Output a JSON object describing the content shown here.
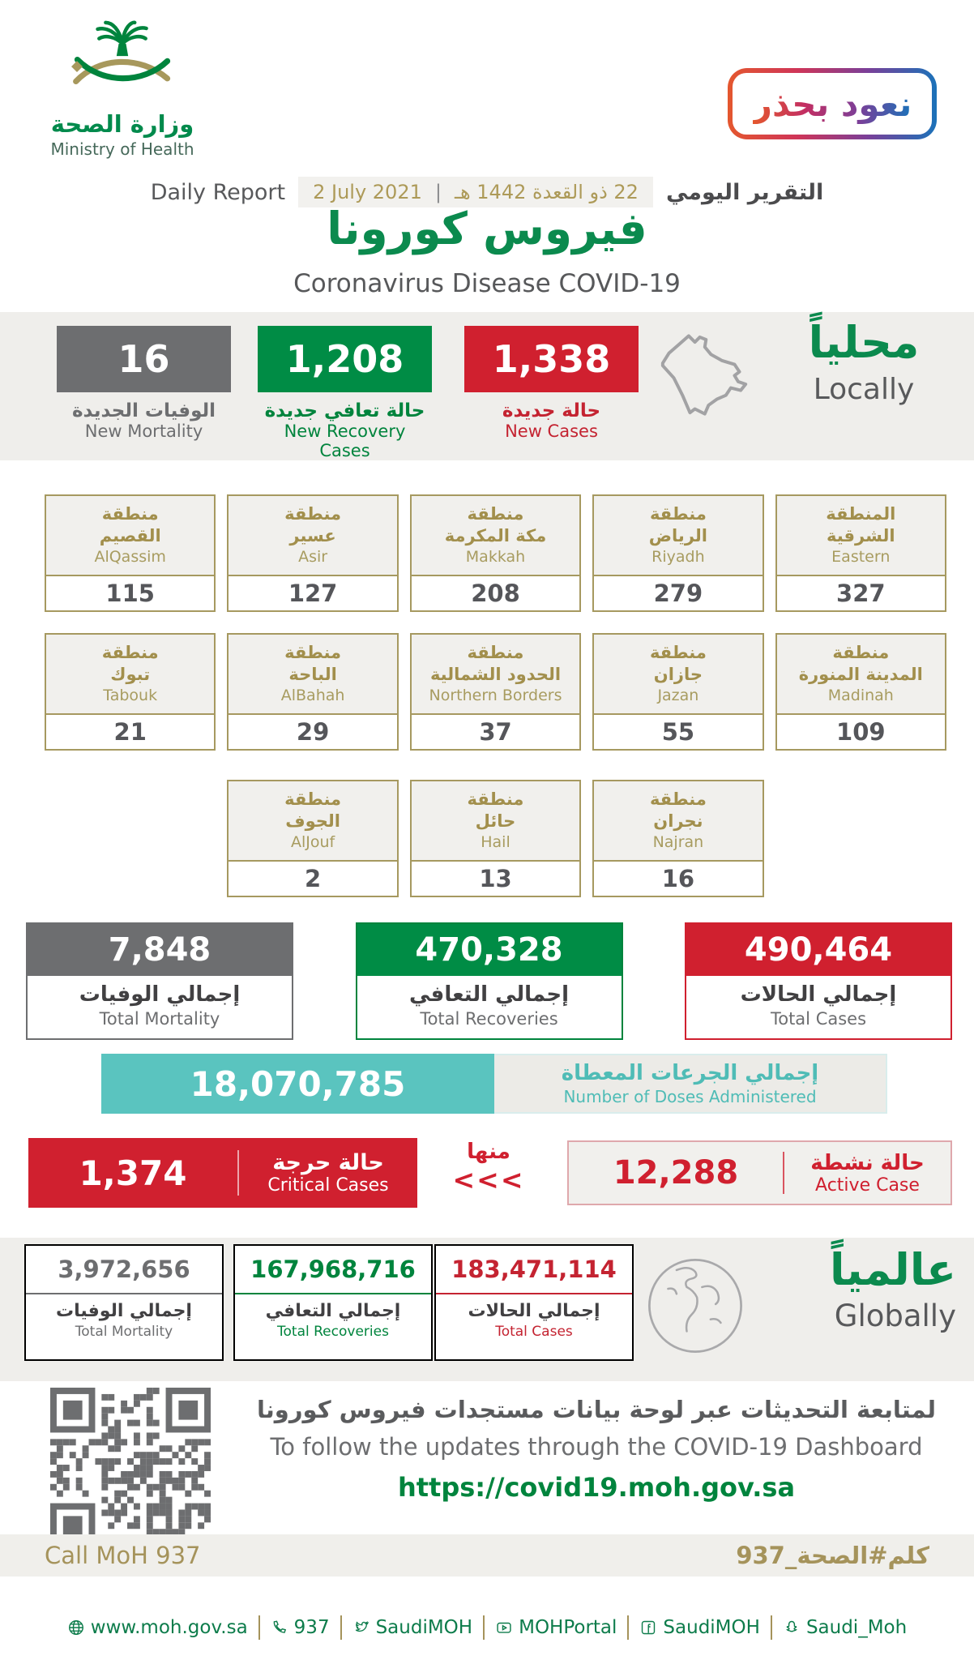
{
  "colors": {
    "green": "#00843d",
    "red": "#d0202f",
    "gray": "#6d6e70",
    "gold": "#a5935b",
    "teal": "#5ac4bf"
  },
  "header": {
    "logo_arabic": "وزارة الصحة",
    "logo_english": "Ministry of Health",
    "badge_text": "نعود بحذر",
    "report_label_en": "Daily Report",
    "date_gregorian": "2 July 2021",
    "date_separator": "|",
    "date_hijri": "22 ذو القعدة 1442 هـ",
    "report_label_ar": "التقرير اليومي",
    "title_ar": "فيروس كورونا",
    "title_en": "Coronavirus Disease COVID-19"
  },
  "locally": {
    "label_ar": "محلياً",
    "label_en": "Locally",
    "map_icon": "saudi-arabia-map-icon",
    "stats": [
      {
        "value": "16",
        "label_ar": "الوفيات الجديدة",
        "label_en": "New Mortality"
      },
      {
        "value": "1,208",
        "label_ar": "حالة تعافي جديدة",
        "label_en": "New Recovery Cases"
      },
      {
        "value": "1,338",
        "label_ar": "حالة جديدة",
        "label_en": "New Cases"
      }
    ]
  },
  "regions": {
    "row1": [
      {
        "ar1": "منطقة",
        "ar2": "القصيم",
        "en": "AlQassim",
        "value": "115"
      },
      {
        "ar1": "منطقة",
        "ar2": "عسير",
        "en": "Asir",
        "value": "127"
      },
      {
        "ar1": "منطقة",
        "ar2": "مكة المكرمة",
        "en": "Makkah",
        "value": "208"
      },
      {
        "ar1": "منطقة",
        "ar2": "الرياض",
        "en": "Riyadh",
        "value": "279"
      },
      {
        "ar1": "المنطقة",
        "ar2": "الشرقية",
        "en": "Eastern",
        "value": "327"
      }
    ],
    "row2": [
      {
        "ar1": "منطقة",
        "ar2": "تبوك",
        "en": "Tabouk",
        "value": "21"
      },
      {
        "ar1": "منطقة",
        "ar2": "الباحة",
        "en": "AlBahah",
        "value": "29"
      },
      {
        "ar1": "منطقة",
        "ar2": "الحدود الشمالية",
        "en": "Northern Borders",
        "value": "37"
      },
      {
        "ar1": "منطقة",
        "ar2": "جازان",
        "en": "Jazan",
        "value": "55"
      },
      {
        "ar1": "منطقة",
        "ar2": "المدينة المنورة",
        "en": "Madinah",
        "value": "109"
      }
    ],
    "row3": [
      {
        "ar1": "منطقة",
        "ar2": "الجوف",
        "en": "AlJouf",
        "value": "2"
      },
      {
        "ar1": "منطقة",
        "ar2": "حائل",
        "en": "Hail",
        "value": "13"
      },
      {
        "ar1": "منطقة",
        "ar2": "نجران",
        "en": "Najran",
        "value": "16"
      }
    ]
  },
  "totals": [
    {
      "value": "7,848",
      "label_ar": "إجمالي الوفيات",
      "label_en": "Total Mortality"
    },
    {
      "value": "470,328",
      "label_ar": "إجمالي التعافي",
      "label_en": "Total Recoveries"
    },
    {
      "value": "490,464",
      "label_ar": "إجمالي الحالات",
      "label_en": "Total Cases"
    }
  ],
  "doses": {
    "value": "18,070,785",
    "label_ar": "إجمالي الجرعات المعطاة",
    "label_en": "Number of Doses Administered"
  },
  "critical": {
    "value": "1,374",
    "label_ar": "حالة حرجة",
    "label_en": "Critical Cases",
    "of_which": "منها",
    "chevrons": "<<<"
  },
  "active": {
    "value": "12,288",
    "label_ar": "حالة نشطة",
    "label_en": "Active Case"
  },
  "globally": {
    "label_ar": "عالمياً",
    "label_en": "Globally",
    "globe_icon": "globe-icon",
    "stats": [
      {
        "value": "3,972,656",
        "label_ar": "إجمالي الوفيات",
        "label_en": "Total Mortality"
      },
      {
        "value": "167,968,716",
        "label_ar": "إجمالي التعافي",
        "label_en": "Total Recoveries"
      },
      {
        "value": "183,471,114",
        "label_ar": "إجمالي الحالات",
        "label_en": "Total Cases"
      }
    ]
  },
  "dashboard": {
    "qr_icon": "qr-code",
    "text_ar": "لمتابعة التحديثات عبر لوحة بيانات مستجدات فيروس كورونا",
    "text_en": "To follow the updates through the COVID-19 Dashboard",
    "url": "https://covid19.moh.gov.sa"
  },
  "footer": {
    "call_text": "Call MoH 937",
    "hashtag": "كلم#الصحة_937"
  },
  "bottom_bar": {
    "items": [
      {
        "icon": "globe-icon",
        "label": "www.moh.gov.sa"
      },
      {
        "icon": "phone-icon",
        "label": "937"
      },
      {
        "icon": "twitter-icon",
        "label": "SaudiMOH"
      },
      {
        "icon": "youtube-icon",
        "label": "MOHPortal"
      },
      {
        "icon": "facebook-icon",
        "label": "SaudiMOH"
      },
      {
        "icon": "snapchat-icon",
        "label": "Saudi_Moh"
      }
    ]
  }
}
